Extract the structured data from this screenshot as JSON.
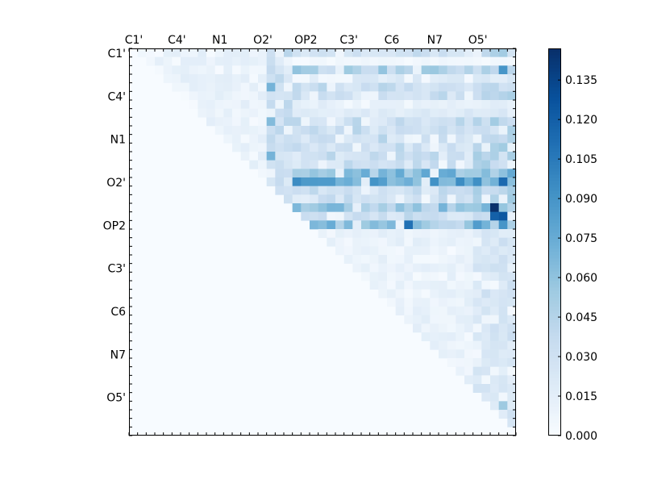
{
  "chart_data": {
    "type": "heatmap",
    "title": "",
    "xlabel": "",
    "ylabel": "",
    "x_tick_labels": [
      "C1'",
      "C4'",
      "N1",
      "O2'",
      "OP2",
      "C3'",
      "C6",
      "N7",
      "O5'"
    ],
    "y_tick_labels": [
      "C1'",
      "C4'",
      "N1",
      "O2'",
      "OP2",
      "C3'",
      "C6",
      "N7",
      "O5'"
    ],
    "x_axis_position": "top",
    "grid": false,
    "colormap": "Blues",
    "colormap_colors": [
      "#f7fbff",
      "#deebf7",
      "#c6dbef",
      "#9ecae1",
      "#6baed6",
      "#4292c6",
      "#2171b5",
      "#08519c",
      "#08306b"
    ],
    "value_range": [
      0.0,
      0.147
    ],
    "colorbar": {
      "placement": "right",
      "ticks": [
        0.0,
        0.015,
        0.03,
        0.045,
        0.06,
        0.075,
        0.09,
        0.105,
        0.12,
        0.135
      ],
      "tick_labels": [
        "0.000",
        "0.015",
        "0.030",
        "0.045",
        "0.060",
        "0.075",
        "0.090",
        "0.105",
        "0.120",
        "0.135"
      ]
    },
    "matrix_size": 45,
    "values_note": "Upper-triangular matrix of small values (mostly 0.00-0.06), with bands of higher values (0.06-0.10) in rows 2, 14-16; peak ~0.147 near row 18, column 42.",
    "row_profiles": [
      {
        "row": 1,
        "level": 0.006
      },
      {
        "row": 2,
        "level": 0.05
      },
      {
        "row": 3,
        "level": 0.02
      },
      {
        "row": 6,
        "level": 0.015
      },
      {
        "row": 7,
        "level": 0.02
      },
      {
        "row": 14,
        "level": 0.07
      },
      {
        "row": 15,
        "level": 0.08
      },
      {
        "row": 18,
        "level": 0.06
      },
      {
        "row": 20,
        "level": 0.06
      }
    ],
    "hotspots": [
      {
        "row": 18,
        "col": 42,
        "value": 0.147
      },
      {
        "row": 19,
        "col": 42,
        "value": 0.12
      },
      {
        "row": 19,
        "col": 43,
        "value": 0.125
      },
      {
        "row": 20,
        "col": 43,
        "value": 0.09
      },
      {
        "row": 15,
        "col": 43,
        "value": 0.115
      },
      {
        "row": 2,
        "col": 43,
        "value": 0.09
      },
      {
        "row": 20,
        "col": 32,
        "value": 0.11
      },
      {
        "row": 20,
        "col": 23,
        "value": 0.075
      },
      {
        "row": 20,
        "col": 40,
        "value": 0.085
      },
      {
        "row": 14,
        "col": 29,
        "value": 0.07
      },
      {
        "row": 4,
        "col": 16,
        "value": 0.07
      },
      {
        "row": 8,
        "col": 16,
        "value": 0.065
      },
      {
        "row": 12,
        "col": 16,
        "value": 0.07
      },
      {
        "row": 41,
        "col": 43,
        "value": 0.055
      }
    ]
  }
}
